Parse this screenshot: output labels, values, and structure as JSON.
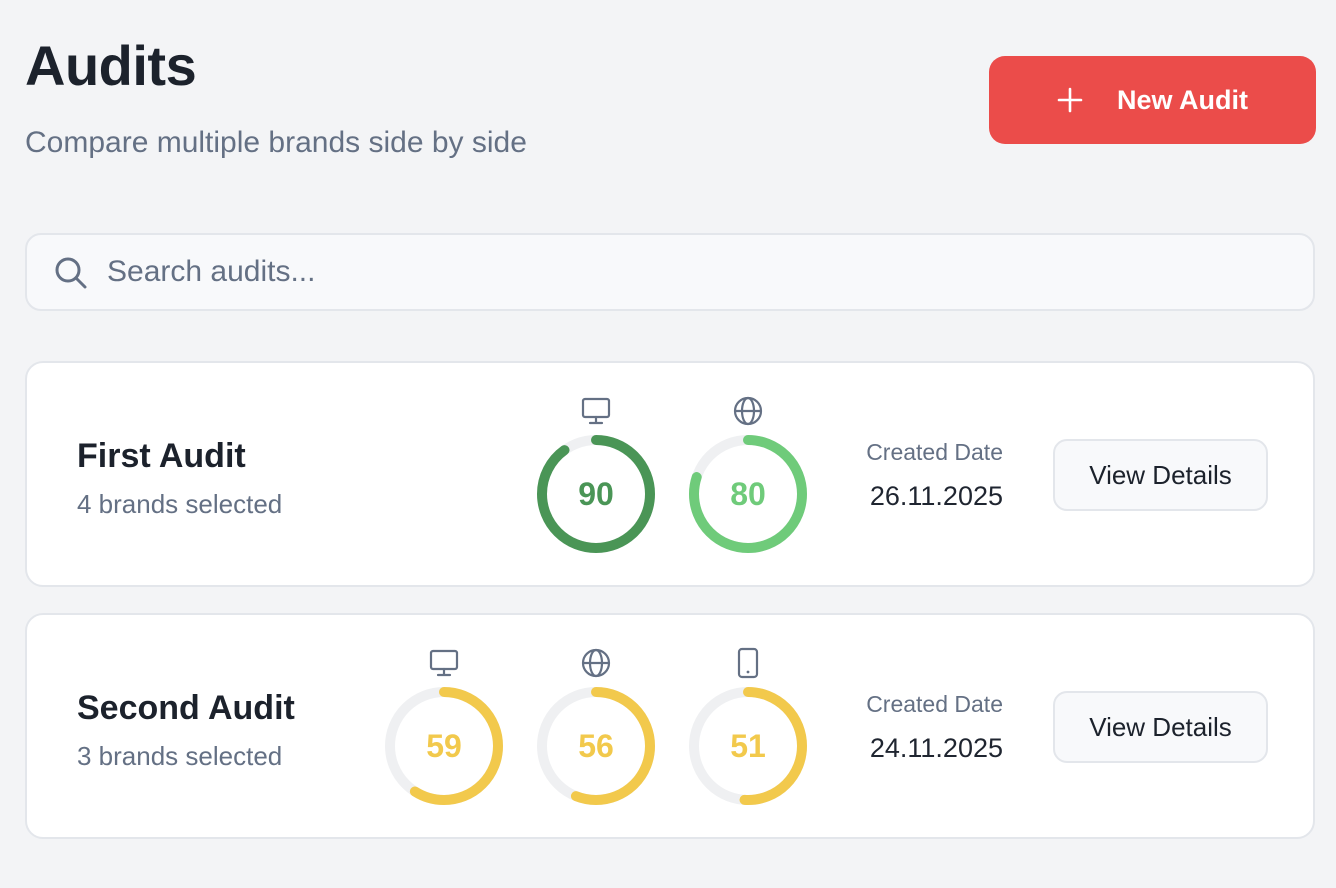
{
  "header": {
    "title": "Audits",
    "subtitle": "Compare multiple brands side by side",
    "new_button_label": "New Audit"
  },
  "search": {
    "placeholder": "Search audits...",
    "value": ""
  },
  "colors": {
    "primary": "#eb4c4a",
    "score_dark_green": "#4a9556",
    "score_light_green": "#6fcb7a",
    "score_yellow": "#f2c94c",
    "ring_track": "#eff0f2"
  },
  "audits": [
    {
      "title": "First Audit",
      "subtitle": "4 brands selected",
      "date_label": "Created Date",
      "date": "26.11.2025",
      "view_label": "View Details",
      "scores": [
        {
          "icon": "monitor-icon",
          "value": 90,
          "color": "#4a9556"
        },
        {
          "icon": "globe-icon",
          "value": 80,
          "color": "#6fcb7a"
        }
      ]
    },
    {
      "title": "Second Audit",
      "subtitle": "3 brands selected",
      "date_label": "Created Date",
      "date": "24.11.2025",
      "view_label": "View Details",
      "scores": [
        {
          "icon": "monitor-icon",
          "value": 59,
          "color": "#f2c94c"
        },
        {
          "icon": "globe-icon",
          "value": 56,
          "color": "#f2c94c"
        },
        {
          "icon": "mobile-icon",
          "value": 51,
          "color": "#f2c94c"
        }
      ]
    }
  ]
}
